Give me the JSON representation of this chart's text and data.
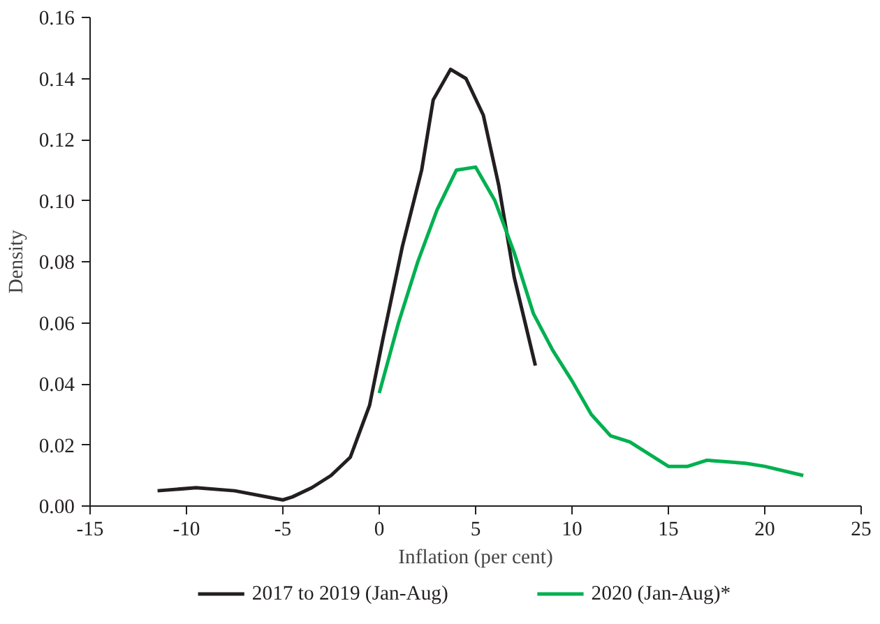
{
  "chart_data": {
    "type": "line",
    "xlabel": "Inflation (per cent)",
    "ylabel": "Density",
    "xlim": [
      -15,
      25
    ],
    "xticks": [
      -15,
      -10,
      -5,
      0,
      5,
      10,
      15,
      20,
      25
    ],
    "ylim": [
      0,
      0.16
    ],
    "yticks": [
      {
        "value": 0,
        "label": "0.00"
      },
      {
        "value": 0.02,
        "label": "0.02"
      },
      {
        "value": 0.04,
        "label": "0.04"
      },
      {
        "value": 0.06,
        "label": "0.06"
      },
      {
        "value": 0.08,
        "label": "0.08"
      },
      {
        "value": 0.1,
        "label": "0.10"
      },
      {
        "value": 0.12,
        "label": "0.12"
      },
      {
        "value": 0.14,
        "label": "0.14"
      },
      {
        "value": 0.16,
        "label": "0.16"
      }
    ],
    "grid": false,
    "legend": "bottom",
    "marker": "none",
    "line_style": "solid",
    "series": [
      {
        "name": "2017 to 2019 (Jan-Aug)",
        "color": "#231f20",
        "x": [
          -11.5,
          -9.5,
          -7.5,
          -5,
          -4.5,
          -3.5,
          -2.5,
          -1.5,
          -0.5,
          0.2,
          1.2,
          2.2,
          2.8,
          3.7,
          4.5,
          5.4,
          6.2,
          7,
          8.1
        ],
        "values": [
          0.005,
          0.006,
          0.005,
          0.002,
          0.003,
          0.006,
          0.01,
          0.016,
          0.033,
          0.055,
          0.085,
          0.11,
          0.133,
          0.143,
          0.14,
          0.128,
          0.105,
          0.075,
          0.046
        ]
      },
      {
        "name": "2020 (Jan-Aug)*",
        "color": "#00b050",
        "x": [
          0,
          1,
          2,
          3,
          4,
          5,
          6,
          7,
          8,
          9,
          10,
          11,
          12,
          13,
          14,
          15,
          16,
          17,
          18,
          19,
          20,
          22
        ],
        "values": [
          0.037,
          0.06,
          0.08,
          0.097,
          0.11,
          0.111,
          0.1,
          0.083,
          0.063,
          0.051,
          0.041,
          0.03,
          0.023,
          0.021,
          0.017,
          0.013,
          0.013,
          0.015,
          0.0145,
          0.014,
          0.013,
          0.01
        ]
      }
    ]
  }
}
